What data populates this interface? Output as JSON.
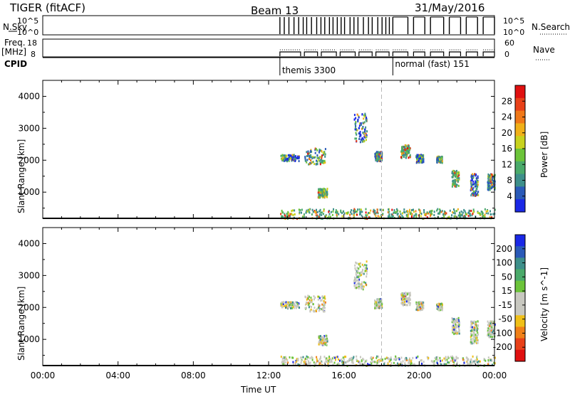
{
  "header": {
    "title": "TIGER (fitACF)",
    "beam": "Beam 13",
    "date": "31/May/2016"
  },
  "summary": {
    "nsky_label": "N.Sky",
    "nsky_ticks": [
      "10^5",
      "10^0"
    ],
    "nsearch_label": "N.Search",
    "nsearch_ticks": [
      "10^5",
      "10^0"
    ],
    "freq_label": "Freq.",
    "freq_unit": "[MHz]",
    "freq_ticks": [
      "18",
      "8"
    ],
    "nave_label": "Nave",
    "nave_ticks": [
      "60",
      "0"
    ],
    "cpid_label": "CPID",
    "cpid_modes": [
      {
        "label": "themis 3300",
        "start_hour": 12.6
      },
      {
        "label": "normal (fast) 151",
        "start_hour": 18.6
      }
    ]
  },
  "chart_data": [
    {
      "type": "heatmap",
      "name": "power-panel",
      "ylabel": "Slant Range [km]",
      "xlabel": "",
      "xlim": [
        0,
        24
      ],
      "ylim": [
        180,
        4500
      ],
      "yticks": [
        1000,
        2000,
        3000,
        4000
      ],
      "colorbar": {
        "label": "Power [dB]",
        "ticks": [
          "4",
          "8",
          "12",
          "16",
          "20",
          "24",
          "28"
        ],
        "colors": [
          "#1a28e6",
          "#2a5ab8",
          "#3d8f8a",
          "#4aaa6a",
          "#6cc43a",
          "#c8d21e",
          "#f0b018",
          "#f07818",
          "#e84018",
          "#e01010"
        ]
      },
      "scatter_regions": [
        {
          "hour_start": 12.6,
          "hour_end": 13.6,
          "range_min": 2000,
          "range_max": 2200
        },
        {
          "hour_start": 13.9,
          "hour_end": 15.0,
          "range_min": 1900,
          "range_max": 2400
        },
        {
          "hour_start": 14.6,
          "hour_end": 15.1,
          "range_min": 850,
          "range_max": 1150
        },
        {
          "hour_start": 16.5,
          "hour_end": 17.2,
          "range_min": 2600,
          "range_max": 3500
        },
        {
          "hour_start": 17.6,
          "hour_end": 18.0,
          "range_min": 2000,
          "range_max": 2300
        },
        {
          "hour_start": 19.0,
          "hour_end": 19.5,
          "range_min": 2100,
          "range_max": 2500
        },
        {
          "hour_start": 19.8,
          "hour_end": 20.2,
          "range_min": 1950,
          "range_max": 2200
        },
        {
          "hour_start": 20.9,
          "hour_end": 21.2,
          "range_min": 1950,
          "range_max": 2150
        },
        {
          "hour_start": 21.7,
          "hour_end": 22.1,
          "range_min": 1200,
          "range_max": 1700
        },
        {
          "hour_start": 22.7,
          "hour_end": 23.1,
          "range_min": 900,
          "range_max": 1600
        },
        {
          "hour_start": 23.6,
          "hour_end": 24.0,
          "range_min": 1100,
          "range_max": 1600
        },
        {
          "hour_start": 12.6,
          "hour_end": 24.0,
          "range_min": 200,
          "range_max": 500
        }
      ]
    },
    {
      "type": "heatmap",
      "name": "velocity-panel",
      "ylabel": "Slant Range [km]",
      "xlabel": "Time UT",
      "xlim": [
        0,
        24
      ],
      "xticks": [
        "00:00",
        "04:00",
        "08:00",
        "12:00",
        "16:00",
        "20:00",
        "00:00"
      ],
      "ylim": [
        180,
        4500
      ],
      "yticks": [
        1000,
        2000,
        3000,
        4000
      ],
      "colorbar": {
        "label": "Velocity [m s^-1]",
        "ticks": [
          "200",
          "100",
          "50",
          "15",
          "-15",
          "-50",
          "-100",
          "-200"
        ],
        "colors": [
          "#1a28e6",
          "#2a5ab8",
          "#3d8f8a",
          "#4aaa6a",
          "#6cc43a",
          "#c8c8c0",
          "#c8c8c0",
          "#f0c018",
          "#f08018",
          "#e84018",
          "#e01010"
        ]
      },
      "scatter_regions": [
        {
          "hour_start": 12.6,
          "hour_end": 13.6,
          "range_min": 2000,
          "range_max": 2200
        },
        {
          "hour_start": 13.9,
          "hour_end": 15.0,
          "range_min": 1900,
          "range_max": 2400
        },
        {
          "hour_start": 14.6,
          "hour_end": 15.1,
          "range_min": 850,
          "range_max": 1150
        },
        {
          "hour_start": 16.5,
          "hour_end": 17.2,
          "range_min": 2600,
          "range_max": 3500
        },
        {
          "hour_start": 17.6,
          "hour_end": 18.0,
          "range_min": 2000,
          "range_max": 2300
        },
        {
          "hour_start": 19.0,
          "hour_end": 19.5,
          "range_min": 2100,
          "range_max": 2500
        },
        {
          "hour_start": 19.8,
          "hour_end": 20.2,
          "range_min": 1950,
          "range_max": 2200
        },
        {
          "hour_start": 20.9,
          "hour_end": 21.2,
          "range_min": 1950,
          "range_max": 2150
        },
        {
          "hour_start": 21.7,
          "hour_end": 22.1,
          "range_min": 1200,
          "range_max": 1700
        },
        {
          "hour_start": 22.7,
          "hour_end": 23.1,
          "range_min": 900,
          "range_max": 1600
        },
        {
          "hour_start": 23.6,
          "hour_end": 24.0,
          "range_min": 1100,
          "range_max": 1600
        },
        {
          "hour_start": 12.6,
          "hour_end": 24.0,
          "range_min": 200,
          "range_max": 500
        }
      ]
    }
  ]
}
